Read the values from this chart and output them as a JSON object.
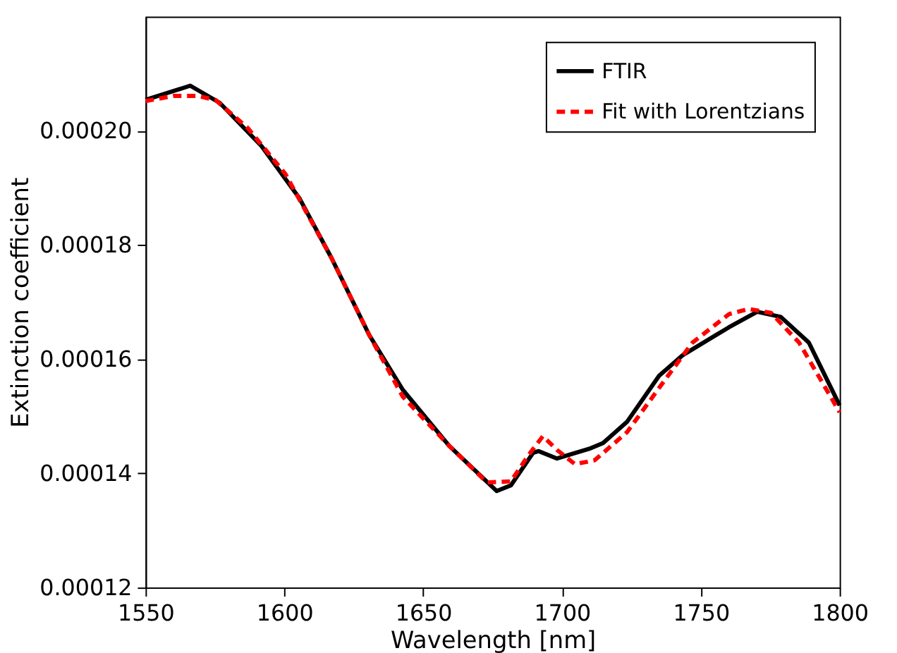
{
  "chart_data": {
    "type": "line",
    "xlabel": "Wavelength [nm]",
    "ylabel": "Extinction coefficient",
    "xlim": [
      1550,
      1800
    ],
    "xticks": [
      1550,
      1600,
      1650,
      1700,
      1750,
      1800
    ],
    "ylim": [
      0.00012,
      0.00022
    ],
    "yticks": [
      0.00012,
      0.00014,
      0.00016,
      0.00018,
      {
        "value": 0.0002,
        "label": "0.00020"
      }
    ],
    "grid": false,
    "legend": "top right",
    "marker": "none",
    "series": [
      {
        "name": "FTIR",
        "color": "#000000",
        "line_style": "solid",
        "x": [
          1550,
          1566.1,
          1576.7,
          1591.8,
          1605.4,
          1617.0,
          1630.6,
          1642.7,
          1659.4,
          1676.5,
          1681.6,
          1689.6,
          1691.6,
          1698.2,
          1709.8,
          1714.8,
          1723.4,
          1735,
          1743.5,
          1760.2,
          1770.3,
          1778.8,
          1788.9,
          1800
        ],
        "values": [
          0.0002054,
          0.0002079,
          0.0002049,
          0.0001973,
          0.0001882,
          0.0001777,
          0.0001642,
          0.0001546,
          0.0001448,
          0.0001369,
          0.0001379,
          0.0001436,
          0.0001439,
          0.0001426,
          0.0001443,
          0.0001453,
          0.000149,
          0.0001571,
          0.0001607,
          0.0001656,
          0.0001683,
          0.0001674,
          0.0001629,
          0.0001519
        ]
      },
      {
        "name": "Fit with Lorentzians",
        "color": "#ff0000",
        "line_style": "dashed",
        "x": [
          1550,
          1560,
          1568.6,
          1575.2,
          1586.8,
          1600.4,
          1617.0,
          1630.6,
          1642.7,
          1659.4,
          1673,
          1681.6,
          1688.1,
          1693.1,
          1698.2,
          1704.7,
          1711.8,
          1723.4,
          1737,
          1747,
          1760.2,
          1767.2,
          1775.3,
          1785.4,
          1800
        ],
        "values": [
          0.0002052,
          0.0002061,
          0.0002061,
          0.0002054,
          0.0002005,
          0.0001924,
          0.0001777,
          0.0001642,
          0.0001534,
          0.0001448,
          0.0001384,
          0.0001386,
          0.0001433,
          0.0001465,
          0.0001441,
          0.0001416,
          0.0001423,
          0.0001472,
          0.0001563,
          0.0001629,
          0.0001679,
          0.0001688,
          0.0001681,
          0.0001629,
          0.0001507
        ]
      }
    ]
  }
}
